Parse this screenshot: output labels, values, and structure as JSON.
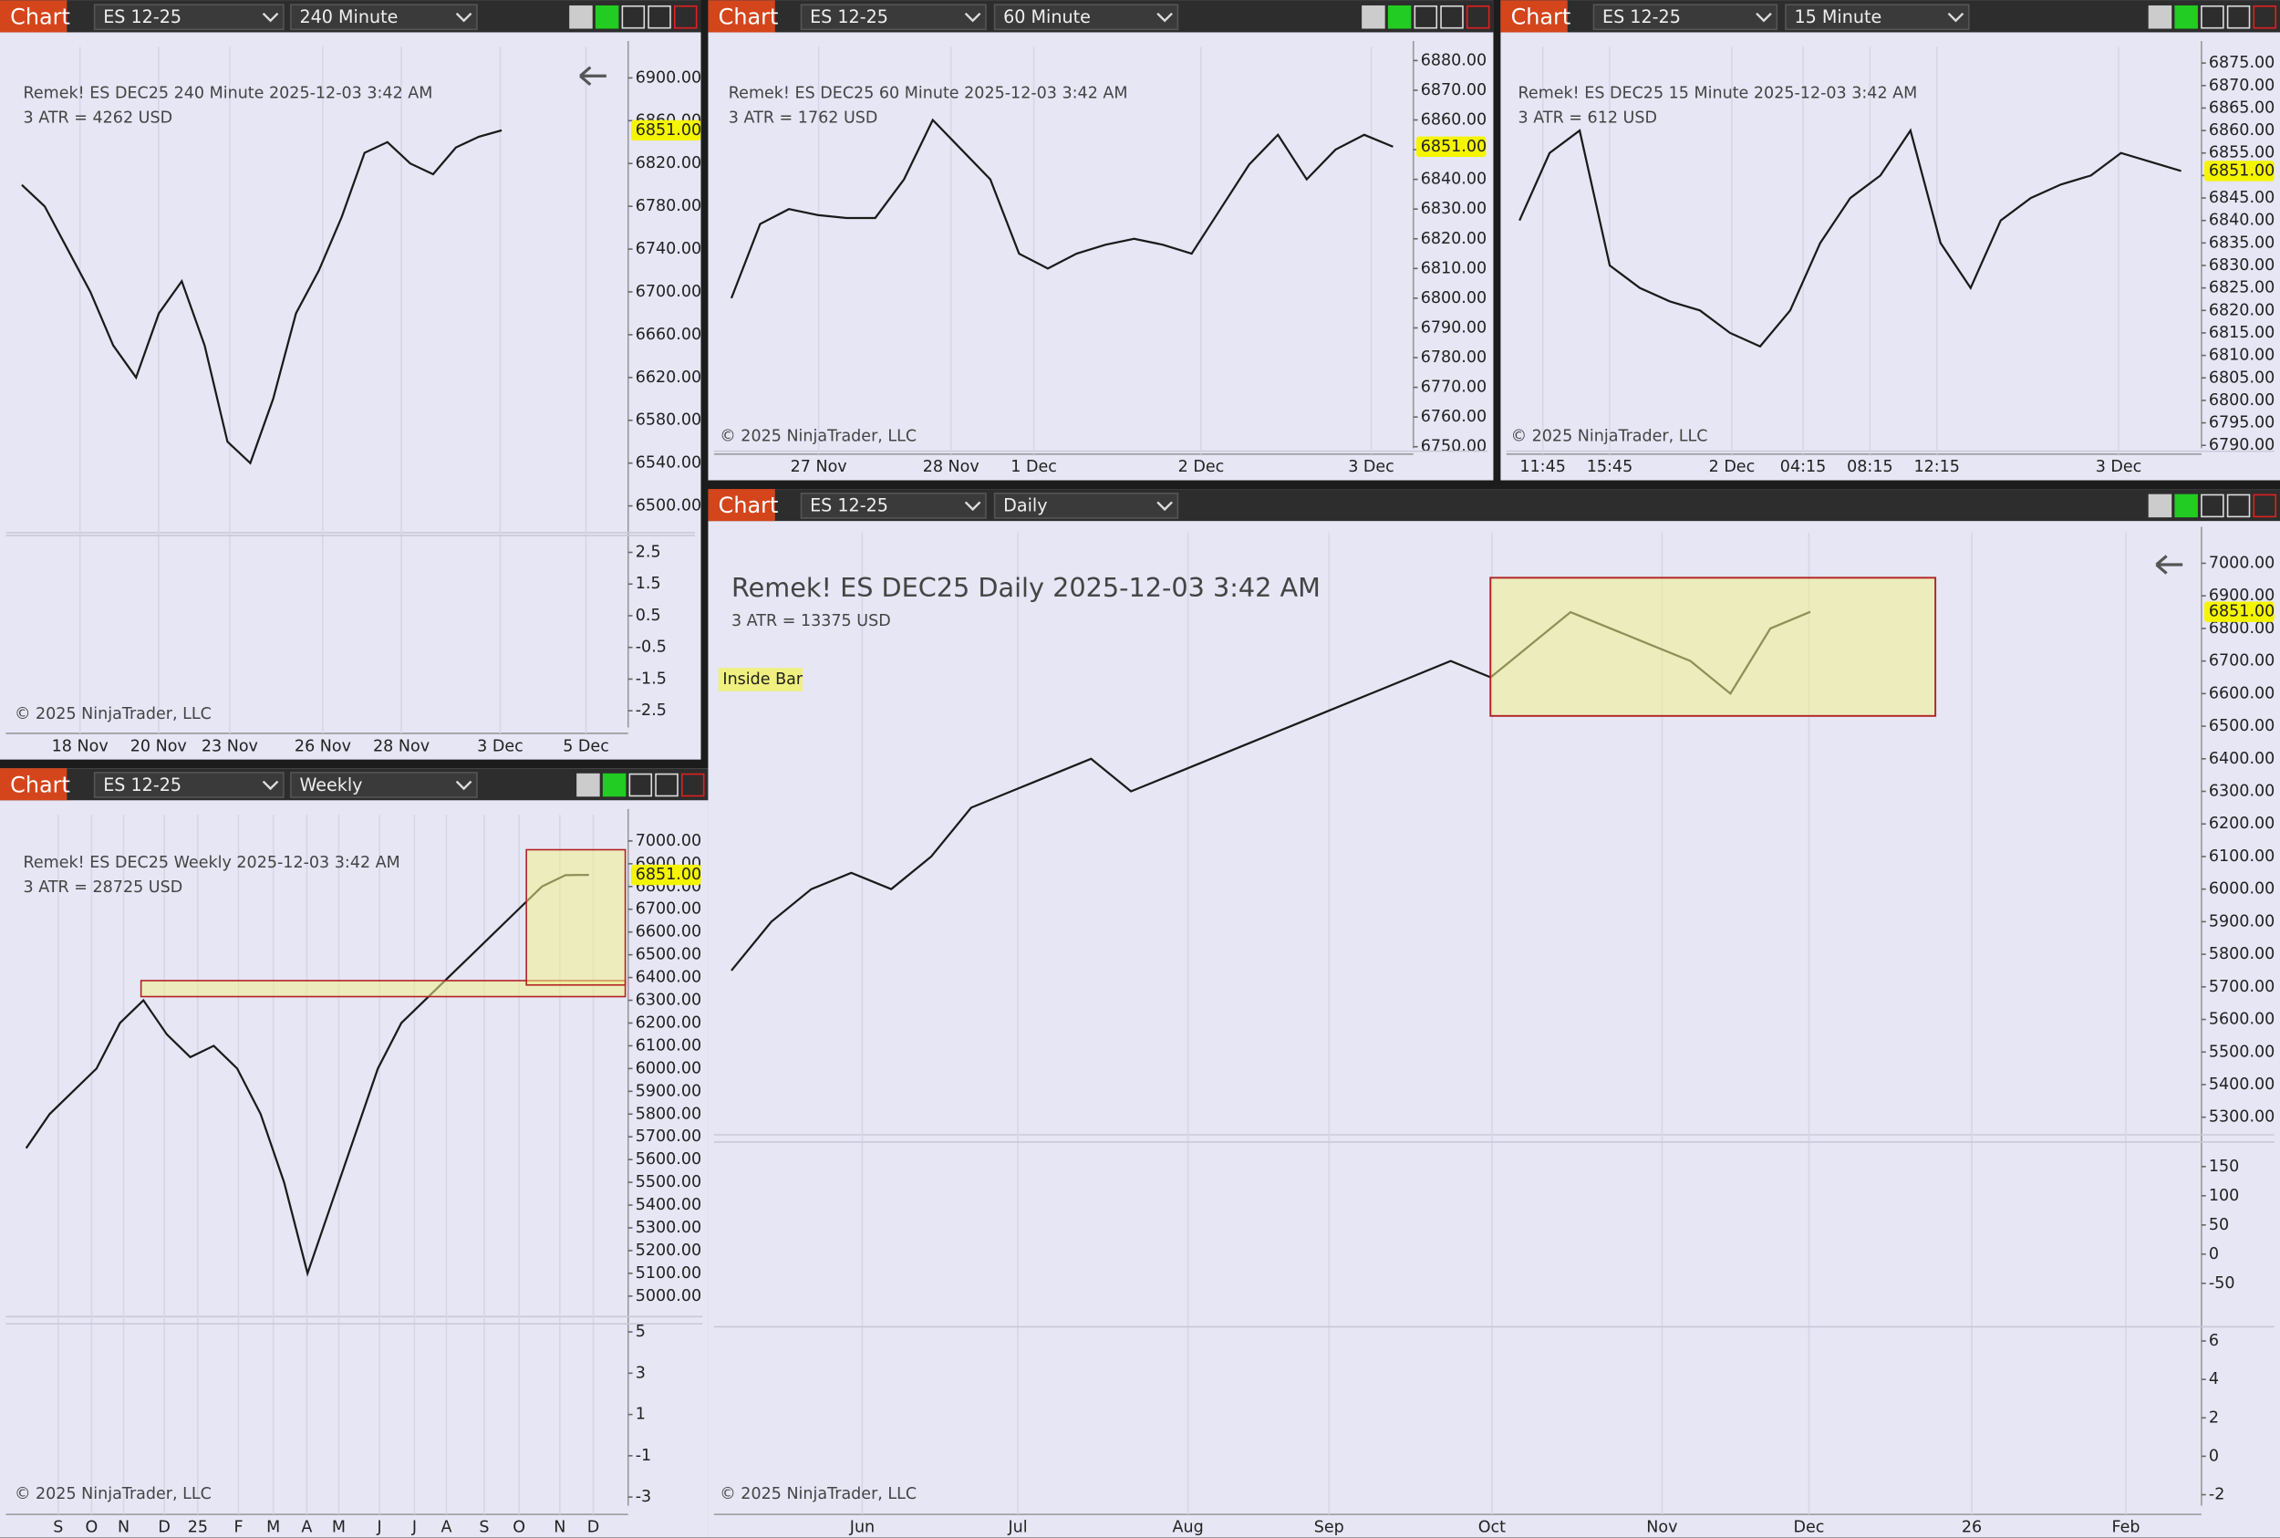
{
  "panels": [
    {
      "tab": "Chart",
      "symbol": "ES 12-25",
      "interval": "240 Minute",
      "info": "Remek!  ES DEC25  240 Minute  2025-12-03 3:42 AM",
      "atr": "3 ATR = 4262 USD",
      "copyright": "© 2025 NinjaTrader, LLC",
      "last": {
        "value": 6851,
        "label": "6851.00"
      },
      "ylim": [
        6475,
        6929
      ],
      "yticks": [
        {
          "value": 6900,
          "label": "6900.00"
        },
        {
          "value": 6860,
          "label": "6860.00"
        },
        {
          "value": 6820,
          "label": "6820.00"
        },
        {
          "value": 6780,
          "label": "6780.00"
        },
        {
          "value": 6740,
          "label": "6740.00"
        },
        {
          "value": 6700,
          "label": "6700.00"
        },
        {
          "value": 6660,
          "label": "6660.00"
        },
        {
          "value": 6620,
          "label": "6620.00"
        },
        {
          "value": 6580,
          "label": "6580.00"
        },
        {
          "value": 6540,
          "label": "6540.00"
        },
        {
          "value": 6500,
          "label": "6500.00"
        }
      ],
      "dates": [
        "18 Nov",
        "20 Nov",
        "23 Nov",
        "26 Nov",
        "28 Nov",
        "3 Dec",
        "5 Dec"
      ],
      "closes": [
        6800,
        6780,
        6740,
        6700,
        6650,
        6620,
        6680,
        6710,
        6650,
        6560,
        6540,
        6600,
        6680,
        6720,
        6770,
        6830,
        6840,
        6820,
        6810,
        6835,
        6845,
        6851
      ],
      "indicators": [
        {
          "ylim": [
            -3.03,
            3.03
          ],
          "yticks": [
            2.5,
            1.5,
            0.5,
            -0.5,
            -1.5,
            -2.5
          ]
        }
      ]
    },
    {
      "tab": "Chart",
      "symbol": "ES 12-25",
      "interval": "60 Minute",
      "info": "Remek!  ES DEC25  60 Minute  2025-12-03 3:42 AM",
      "atr": "3 ATR = 1762 USD",
      "copyright": "© 2025 NinjaTrader, LLC",
      "last": {
        "value": 6851,
        "label": "6851.00"
      },
      "ylim": [
        6748.5,
        6884.6
      ],
      "yticks": [
        {
          "value": 6880,
          "label": "6880.00"
        },
        {
          "value": 6870,
          "label": "6870.00"
        },
        {
          "value": 6860,
          "label": "6860.00"
        },
        {
          "value": 6850,
          "label": "6850.00"
        },
        {
          "value": 6840,
          "label": "6840.00"
        },
        {
          "value": 6830,
          "label": "6830.00"
        },
        {
          "value": 6820,
          "label": "6820.00"
        },
        {
          "value": 6810,
          "label": "6810.00"
        },
        {
          "value": 6800,
          "label": "6800.00"
        },
        {
          "value": 6790,
          "label": "6790.00"
        },
        {
          "value": 6780,
          "label": "6780.00"
        },
        {
          "value": 6770,
          "label": "6770.00"
        },
        {
          "value": 6760,
          "label": "6760.00"
        },
        {
          "value": 6750,
          "label": "6750.00"
        }
      ],
      "dates": [
        "27 Nov",
        "28 Nov",
        "1 Dec",
        "2 Dec",
        "3 Dec"
      ],
      "closes": [
        6800,
        6825,
        6830,
        6828,
        6827,
        6827,
        6840,
        6860,
        6850,
        6840,
        6815,
        6810,
        6815,
        6818,
        6820,
        6818,
        6815,
        6830,
        6845,
        6855,
        6840,
        6850,
        6855,
        6851
      ],
      "indicators": []
    },
    {
      "tab": "Chart",
      "symbol": "ES 12-25",
      "interval": "15 Minute",
      "info": "Remek!  ES DEC25  15 Minute  2025-12-03 3:42 AM",
      "atr": "3 ATR = 612 USD",
      "copyright": "© 2025 NinjaTrader, LLC",
      "last": {
        "value": 6851,
        "label": "6851.00"
      },
      "ylim": [
        6788.7,
        6878.6
      ],
      "yticks": [
        {
          "value": 6875,
          "label": "6875.00"
        },
        {
          "value": 6870,
          "label": "6870.00"
        },
        {
          "value": 6865,
          "label": "6865.00"
        },
        {
          "value": 6860,
          "label": "6860.00"
        },
        {
          "value": 6855,
          "label": "6855.00"
        },
        {
          "value": 6850,
          "label": "6850.00"
        },
        {
          "value": 6845,
          "label": "6845.00"
        },
        {
          "value": 6840,
          "label": "6840.00"
        },
        {
          "value": 6835,
          "label": "6835.00"
        },
        {
          "value": 6830,
          "label": "6830.00"
        },
        {
          "value": 6825,
          "label": "6825.00"
        },
        {
          "value": 6820,
          "label": "6820.00"
        },
        {
          "value": 6815,
          "label": "6815.00"
        },
        {
          "value": 6810,
          "label": "6810.00"
        },
        {
          "value": 6805,
          "label": "6805.00"
        },
        {
          "value": 6800,
          "label": "6800.00"
        },
        {
          "value": 6795,
          "label": "6795.00"
        },
        {
          "value": 6790,
          "label": "6790.00"
        }
      ],
      "dates": [
        "11:45",
        "15:45",
        "2 Dec",
        "04:15",
        "08:15",
        "12:15",
        "3 Dec"
      ],
      "closes": [
        6840,
        6855,
        6860,
        6830,
        6825,
        6822,
        6820,
        6815,
        6812,
        6820,
        6835,
        6845,
        6850,
        6860,
        6835,
        6825,
        6840,
        6845,
        6848,
        6850,
        6855,
        6853,
        6851
      ],
      "indicators": []
    },
    {
      "tab": "Chart",
      "symbol": "ES 12-25",
      "interval": "Weekly",
      "info": "Remek!  ES DEC25  Weekly  2025-12-03 3:42 AM",
      "atr": "3 ATR = 28725 USD",
      "copyright": "© 2025 NinjaTrader, LLC",
      "last": {
        "value": 6851,
        "label": "6851.00"
      },
      "ylim": [
        4910,
        7115
      ],
      "yticks": [
        {
          "value": 7000,
          "label": "7000.00"
        },
        {
          "value": 6900,
          "label": "6900.00"
        },
        {
          "value": 6800,
          "label": "6800.00"
        },
        {
          "value": 6700,
          "label": "6700.00"
        },
        {
          "value": 6600,
          "label": "6600.00"
        },
        {
          "value": 6500,
          "label": "6500.00"
        },
        {
          "value": 6400,
          "label": "6400.00"
        },
        {
          "value": 6300,
          "label": "6300.00"
        },
        {
          "value": 6200,
          "label": "6200.00"
        },
        {
          "value": 6100,
          "label": "6100.00"
        },
        {
          "value": 6000,
          "label": "6000.00"
        },
        {
          "value": 5900,
          "label": "5900.00"
        },
        {
          "value": 5800,
          "label": "5800.00"
        },
        {
          "value": 5700,
          "label": "5700.00"
        },
        {
          "value": 5600,
          "label": "5600.00"
        },
        {
          "value": 5500,
          "label": "5500.00"
        },
        {
          "value": 5400,
          "label": "5400.00"
        },
        {
          "value": 5300,
          "label": "5300.00"
        },
        {
          "value": 5200,
          "label": "5200.00"
        },
        {
          "value": 5100,
          "label": "5100.00"
        },
        {
          "value": 5000,
          "label": "5000.00"
        }
      ],
      "dates": [
        "S",
        "O",
        "N",
        "D",
        "25",
        "F",
        "M",
        "A",
        "M",
        "J",
        "J",
        "A",
        "S",
        "O",
        "N",
        "D"
      ],
      "closes": [
        5650,
        5800,
        5900,
        6000,
        6200,
        6300,
        6150,
        6050,
        6100,
        6000,
        5800,
        5500,
        5100,
        5400,
        5700,
        6000,
        6200,
        6300,
        6400,
        6500,
        6600,
        6700,
        6800,
        6850,
        6851
      ],
      "indicators": [
        {
          "ylim": [
            -3.77,
            5.39
          ],
          "yticks": [
            5,
            3,
            1,
            -1,
            -3
          ]
        }
      ]
    },
    {
      "tab": "Chart",
      "symbol": "ES 12-25",
      "interval": "Daily",
      "info": "Remek!  ES DEC25  Daily  2025-12-03 3:42 AM",
      "atr": "3 ATR = 13375 USD",
      "copyright": "© 2025 NinjaTrader, LLC",
      "annotation": "Inside Bar",
      "last": {
        "value": 6851,
        "label": "6851.00"
      },
      "ylim": [
        5246,
        7094
      ],
      "yticks": [
        {
          "value": 7000,
          "label": "7000.00"
        },
        {
          "value": 6900,
          "label": "6900.00"
        },
        {
          "value": 6800,
          "label": "6800.00"
        },
        {
          "value": 6700,
          "label": "6700.00"
        },
        {
          "value": 6600,
          "label": "6600.00"
        },
        {
          "value": 6500,
          "label": "6500.00"
        },
        {
          "value": 6400,
          "label": "6400.00"
        },
        {
          "value": 6300,
          "label": "6300.00"
        },
        {
          "value": 6200,
          "label": "6200.00"
        },
        {
          "value": 6100,
          "label": "6100.00"
        },
        {
          "value": 6000,
          "label": "6000.00"
        },
        {
          "value": 5900,
          "label": "5900.00"
        },
        {
          "value": 5800,
          "label": "5800.00"
        },
        {
          "value": 5700,
          "label": "5700.00"
        },
        {
          "value": 5600,
          "label": "5600.00"
        },
        {
          "value": 5500,
          "label": "5500.00"
        },
        {
          "value": 5400,
          "label": "5400.00"
        },
        {
          "value": 5300,
          "label": "5300.00"
        }
      ],
      "dates": [
        "Jun",
        "Jul",
        "Aug",
        "Sep",
        "Oct",
        "Nov",
        "Dec",
        "26",
        "Feb"
      ],
      "closes": [
        5750,
        5900,
        6000,
        6050,
        6000,
        6100,
        6250,
        6300,
        6350,
        6400,
        6300,
        6350,
        6400,
        6450,
        6500,
        6550,
        6600,
        6650,
        6700,
        6650,
        6750,
        6850,
        6800,
        6750,
        6700,
        6600,
        6800,
        6851
      ],
      "indicators": [
        {
          "ylim": [
            -107,
            192
          ],
          "yticks": [
            150,
            100,
            50,
            0,
            -50
          ]
        },
        {
          "ylim": [
            -2.95,
            6.74
          ],
          "yticks": [
            6,
            4,
            2,
            0,
            -2
          ]
        }
      ]
    }
  ]
}
